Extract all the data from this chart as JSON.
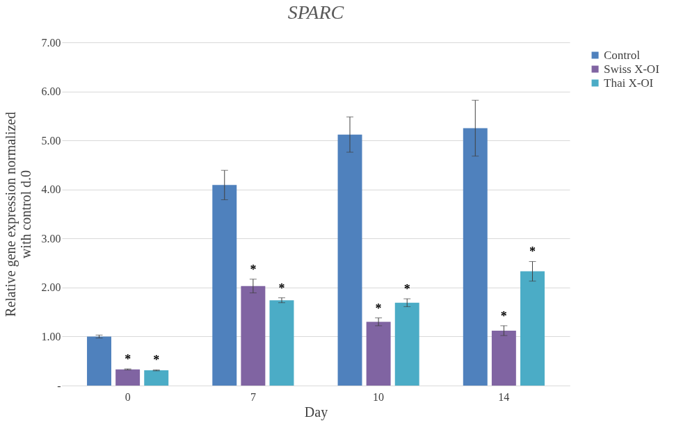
{
  "chart_data": {
    "type": "bar",
    "title": "SPARC",
    "xlabel": "Day",
    "ylabel": "Relative gene expression normalized with control d.0",
    "categories": [
      "0",
      "7",
      "10",
      "14"
    ],
    "series": [
      {
        "name": "Control",
        "color": "#4f81bd",
        "values": [
          1.0,
          4.09,
          5.12,
          5.25
        ],
        "errors": [
          0.03,
          0.3,
          0.36,
          0.57
        ],
        "value_labels": [
          null,
          null,
          null,
          null
        ]
      },
      {
        "name": "Swiss X-OI",
        "color": "#8064a2",
        "values": [
          0.33,
          2.03,
          1.3,
          1.12
        ],
        "errors": [
          0.01,
          0.14,
          0.08,
          0.1
        ],
        "value_labels": [
          "*",
          "*",
          "*",
          "*"
        ]
      },
      {
        "name": "Thai X-OI",
        "color": "#4bacc6",
        "values": [
          0.31,
          1.74,
          1.69,
          2.33
        ],
        "errors": [
          0.01,
          0.05,
          0.08,
          0.2
        ],
        "value_labels": [
          "*",
          "*",
          "*",
          "*"
        ]
      }
    ],
    "ylim": [
      0,
      7
    ],
    "yticks": [
      {
        "value": 0,
        "label": "-"
      },
      {
        "value": 1,
        "label": "1.00"
      },
      {
        "value": 2,
        "label": "2.00"
      },
      {
        "value": 3,
        "label": "3.00"
      },
      {
        "value": 4,
        "label": "4.00"
      },
      {
        "value": 5,
        "label": "5.00"
      },
      {
        "value": 6,
        "label": "6.00"
      },
      {
        "value": 7,
        "label": "7.00"
      }
    ],
    "grid": "y",
    "legend": "right"
  }
}
